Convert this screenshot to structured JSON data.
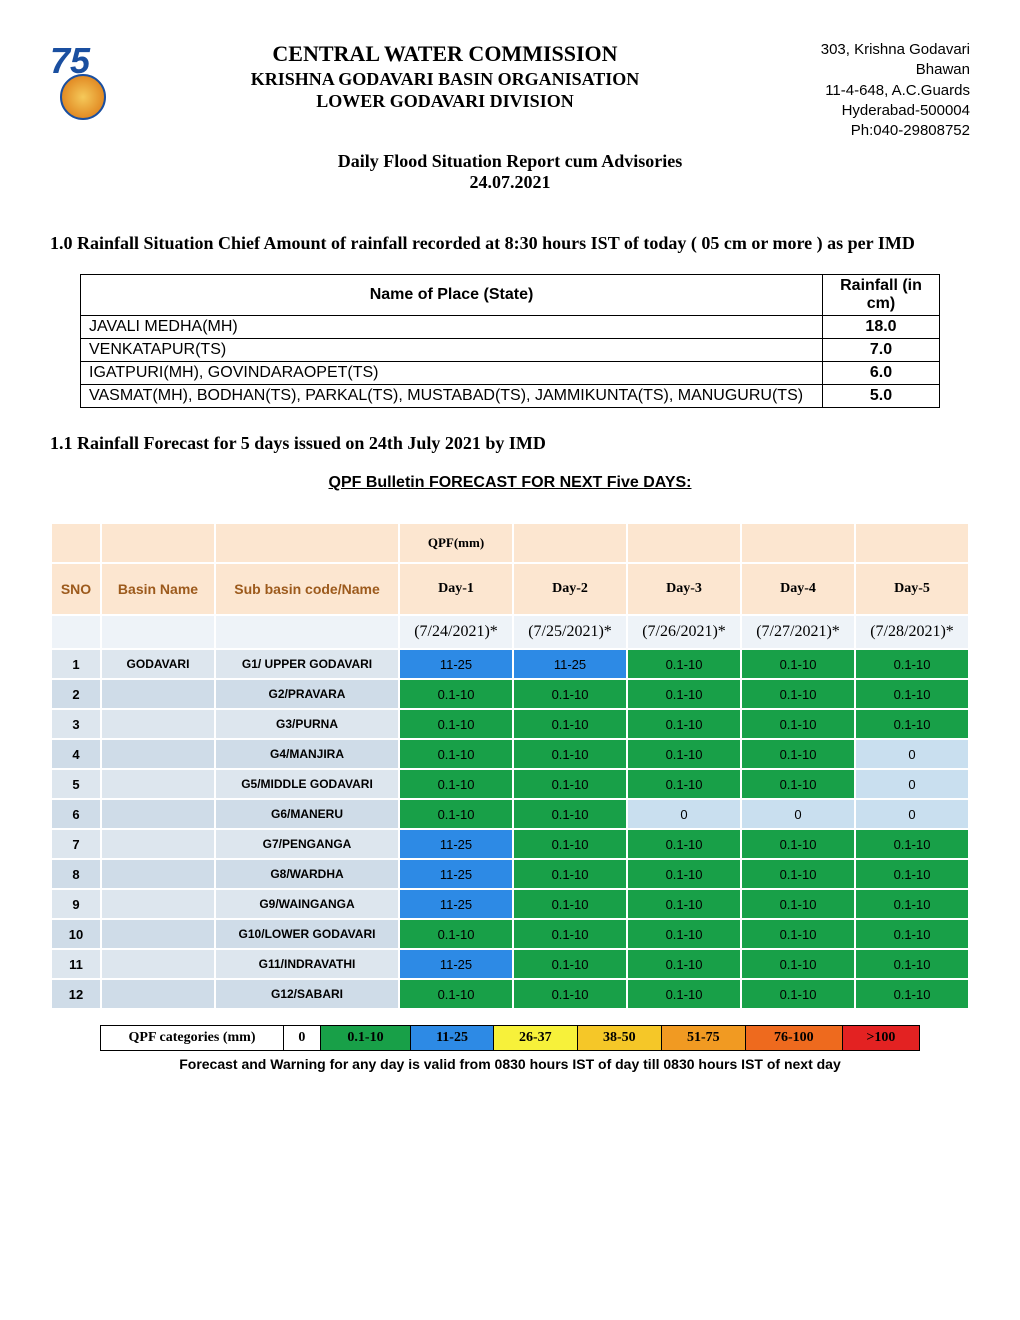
{
  "header": {
    "title_lines": [
      "CENTRAL WATER COMMISSION",
      "KRISHNA GODAVARI BASIN ORGANISATION",
      "LOWER GODAVARI DIVISION"
    ],
    "address_lines": [
      "303, Krishna Godavari Bhawan",
      "11-4-648, A.C.Guards",
      "Hyderabad-500004",
      "Ph:040-29808752"
    ],
    "subtitle_l1": "Daily Flood Situation Report cum Advisories",
    "subtitle_l2": "24.07.2021"
  },
  "section1": {
    "heading": "1.0 Rainfall Situation Chief Amount of rainfall recorded at 8:30 hours IST of today ( 05 cm or more ) as per IMD",
    "col_place": "Name of Place (State)",
    "col_rain": "Rainfall (in cm)",
    "rows": [
      {
        "place": "JAVALI MEDHA(MH)",
        "val": "18.0"
      },
      {
        "place": "VENKATAPUR(TS)",
        "val": "7.0"
      },
      {
        "place": "IGATPURI(MH), GOVINDARAOPET(TS)",
        "val": "6.0"
      },
      {
        "place": "VASMAT(MH), BODHAN(TS), PARKAL(TS), MUSTABAD(TS), JAMMIKUNTA(TS), MANUGURU(TS)",
        "val": "5.0"
      }
    ]
  },
  "section11": {
    "heading": "1.1 Rainfall Forecast for 5 days issued on 24th July 2021 by IMD",
    "qpf_title": "QPF Bulletin FORECAST FOR NEXT Five DAYS:"
  },
  "forecast": {
    "h_sno": "SNO",
    "h_basin": "Basin Name",
    "h_sub": "Sub basin code/Name",
    "h_qpf": "QPF(mm)",
    "days": [
      "Day-1",
      "Day-2",
      "Day-3",
      "Day-4",
      "Day-5"
    ],
    "dates": [
      "(7/24/2021)*",
      "(7/25/2021)*",
      "(7/26/2021)*",
      "(7/27/2021)*",
      "(7/28/2021)*"
    ],
    "basin_name": "GODAVARI",
    "categories": {
      "green": {
        "label": "0.1-10",
        "color": "#18a048"
      },
      "blue": {
        "label": "11-25",
        "color": "#2d8ae5"
      },
      "zero": {
        "label": "0",
        "color": "#c9dfef"
      }
    },
    "rows": [
      {
        "sno": "1",
        "sub": "G1/ UPPER GODAVARI",
        "cells": [
          "blue",
          "blue",
          "green",
          "green",
          "green"
        ]
      },
      {
        "sno": "2",
        "sub": "G2/PRAVARA",
        "cells": [
          "green",
          "green",
          "green",
          "green",
          "green"
        ]
      },
      {
        "sno": "3",
        "sub": "G3/PURNA",
        "cells": [
          "green",
          "green",
          "green",
          "green",
          "green"
        ]
      },
      {
        "sno": "4",
        "sub": "G4/MANJIRA",
        "cells": [
          "green",
          "green",
          "green",
          "green",
          "zero"
        ]
      },
      {
        "sno": "5",
        "sub": "G5/MIDDLE GODAVARI",
        "cells": [
          "green",
          "green",
          "green",
          "green",
          "zero"
        ]
      },
      {
        "sno": "6",
        "sub": "G6/MANERU",
        "cells": [
          "green",
          "green",
          "zero",
          "zero",
          "zero"
        ]
      },
      {
        "sno": "7",
        "sub": "G7/PENGANGA",
        "cells": [
          "blue",
          "green",
          "green",
          "green",
          "green"
        ]
      },
      {
        "sno": "8",
        "sub": "G8/WARDHA",
        "cells": [
          "blue",
          "green",
          "green",
          "green",
          "green"
        ]
      },
      {
        "sno": "9",
        "sub": "G9/WAINGANGA",
        "cells": [
          "blue",
          "green",
          "green",
          "green",
          "green"
        ]
      },
      {
        "sno": "10",
        "sub": "G10/LOWER GODAVARI",
        "cells": [
          "green",
          "green",
          "green",
          "green",
          "green"
        ]
      },
      {
        "sno": "11",
        "sub": "G11/INDRAVATHI",
        "cells": [
          "blue",
          "green",
          "green",
          "green",
          "green"
        ]
      },
      {
        "sno": "12",
        "sub": "G12/SABARI",
        "cells": [
          "green",
          "green",
          "green",
          "green",
          "green"
        ]
      }
    ]
  },
  "legend": {
    "title": "QPF categories (mm)",
    "items": [
      {
        "label": "0",
        "bg": "#ffffff"
      },
      {
        "label": "0.1-10",
        "bg": "#18a048"
      },
      {
        "label": "11-25",
        "bg": "#2d8ae5"
      },
      {
        "label": "26-37",
        "bg": "#f7f13a"
      },
      {
        "label": "38-50",
        "bg": "#f5c728"
      },
      {
        "label": "51-75",
        "bg": "#f19a22"
      },
      {
        "label": "76-100",
        "bg": "#ee6a1e"
      },
      {
        "label": ">100",
        "bg": "#e32222"
      }
    ]
  },
  "footnote": "Forecast and Warning for any day is valid from 0830 hours IST of day till 0830 hours IST of next day"
}
